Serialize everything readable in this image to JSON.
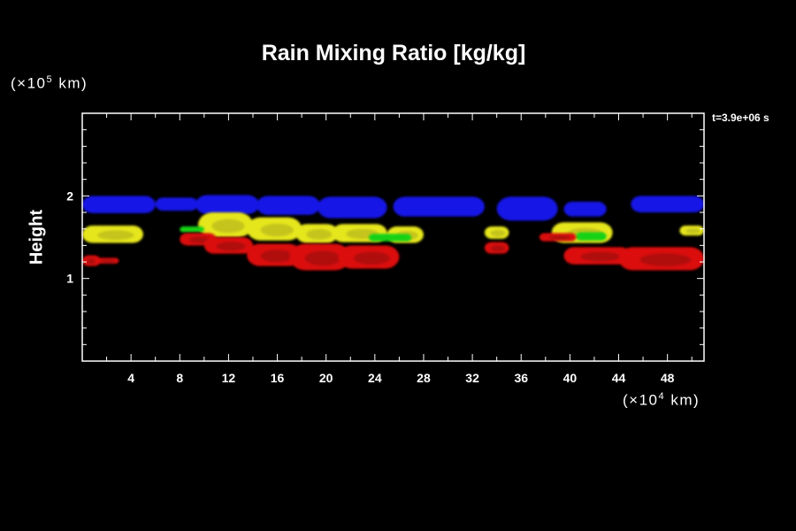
{
  "chart_data": {
    "type": "heatmap",
    "title": "Rain Mixing Ratio [kg/kg]",
    "ylabel": "Height",
    "y_unit": {
      "prefix": "(×10",
      "exp": "5",
      "suffix": " km)"
    },
    "x_unit": {
      "prefix": "(×10",
      "exp": "4",
      "suffix": " km)"
    },
    "time_label": "t=3.9e+06 s",
    "xlim": [
      0,
      51
    ],
    "ylim": [
      0,
      3
    ],
    "x_ticks": [
      4,
      8,
      12,
      16,
      20,
      24,
      28,
      32,
      36,
      40,
      44,
      48
    ],
    "y_ticks": [
      1,
      2
    ],
    "colors": {
      "blue": "#1414e6",
      "yellow": "#e6e61e",
      "yellow_dark": "#a8a81c",
      "green": "#14d214",
      "red": "#dc0a0a",
      "red_dark": "#8c0808"
    },
    "layers": [
      {
        "name": "upper",
        "color": "blue",
        "blobs": [
          {
            "x": [
              0,
              6
            ],
            "y": [
              1.79,
              2.0
            ]
          },
          {
            "x": [
              6,
              9.5
            ],
            "y": [
              1.82,
              1.98
            ]
          },
          {
            "x": [
              9.3,
              14.5
            ],
            "y": [
              1.78,
              2.01
            ]
          },
          {
            "x": [
              14.3,
              19.5
            ],
            "y": [
              1.77,
              2.0
            ]
          },
          {
            "x": [
              19.3,
              25
            ],
            "y": [
              1.73,
              1.99
            ]
          },
          {
            "x": [
              25.5,
              33
            ],
            "y": [
              1.75,
              1.99
            ]
          },
          {
            "x": [
              34,
              39
            ],
            "y": [
              1.7,
              1.99
            ]
          },
          {
            "x": [
              39.5,
              43
            ],
            "y": [
              1.75,
              1.93
            ]
          },
          {
            "x": [
              45,
              51
            ],
            "y": [
              1.8,
              2.0
            ]
          }
        ]
      },
      {
        "name": "middle",
        "color": "yellow",
        "blobs": [
          {
            "x": [
              0,
              5
            ],
            "y": [
              1.43,
              1.64
            ]
          },
          {
            "x": [
              9.5,
              14
            ],
            "y": [
              1.5,
              1.8
            ]
          },
          {
            "x": [
              13.5,
              18
            ],
            "y": [
              1.46,
              1.74
            ]
          },
          {
            "x": [
              17.5,
              21
            ],
            "y": [
              1.43,
              1.66
            ]
          },
          {
            "x": [
              20.5,
              25
            ],
            "y": [
              1.44,
              1.66
            ]
          },
          {
            "x": [
              25,
              28
            ],
            "y": [
              1.43,
              1.63
            ]
          },
          {
            "x": [
              33,
              35
            ],
            "y": [
              1.48,
              1.63
            ]
          },
          {
            "x": [
              38.5,
              43.5
            ],
            "y": [
              1.43,
              1.68
            ]
          },
          {
            "x": [
              49,
              51
            ],
            "y": [
              1.52,
              1.64
            ]
          }
        ]
      },
      {
        "name": "middle-edge",
        "color": "green",
        "blobs": [
          {
            "x": [
              8,
              10
            ],
            "y": [
              1.56,
              1.63
            ]
          },
          {
            "x": [
              23.5,
              27
            ],
            "y": [
              1.45,
              1.54
            ]
          },
          {
            "x": [
              40.5,
              43
            ],
            "y": [
              1.46,
              1.56
            ]
          }
        ]
      },
      {
        "name": "lower",
        "color": "red",
        "blobs": [
          {
            "x": [
              0,
              1.5
            ],
            "y": [
              1.15,
              1.28
            ]
          },
          {
            "x": [
              1,
              3
            ],
            "y": [
              1.18,
              1.25
            ]
          },
          {
            "x": [
              8,
              11
            ],
            "y": [
              1.4,
              1.55
            ]
          },
          {
            "x": [
              10,
              14
            ],
            "y": [
              1.3,
              1.5
            ]
          },
          {
            "x": [
              13.5,
              18
            ],
            "y": [
              1.15,
              1.42
            ]
          },
          {
            "x": [
              17,
              22
            ],
            "y": [
              1.1,
              1.42
            ]
          },
          {
            "x": [
              21,
              26
            ],
            "y": [
              1.12,
              1.4
            ]
          },
          {
            "x": [
              33,
              35
            ],
            "y": [
              1.3,
              1.44
            ]
          },
          {
            "x": [
              37.5,
              40.5
            ],
            "y": [
              1.45,
              1.55
            ]
          },
          {
            "x": [
              39.5,
              45
            ],
            "y": [
              1.17,
              1.38
            ]
          },
          {
            "x": [
              44,
              51
            ],
            "y": [
              1.1,
              1.38
            ]
          }
        ]
      }
    ]
  }
}
